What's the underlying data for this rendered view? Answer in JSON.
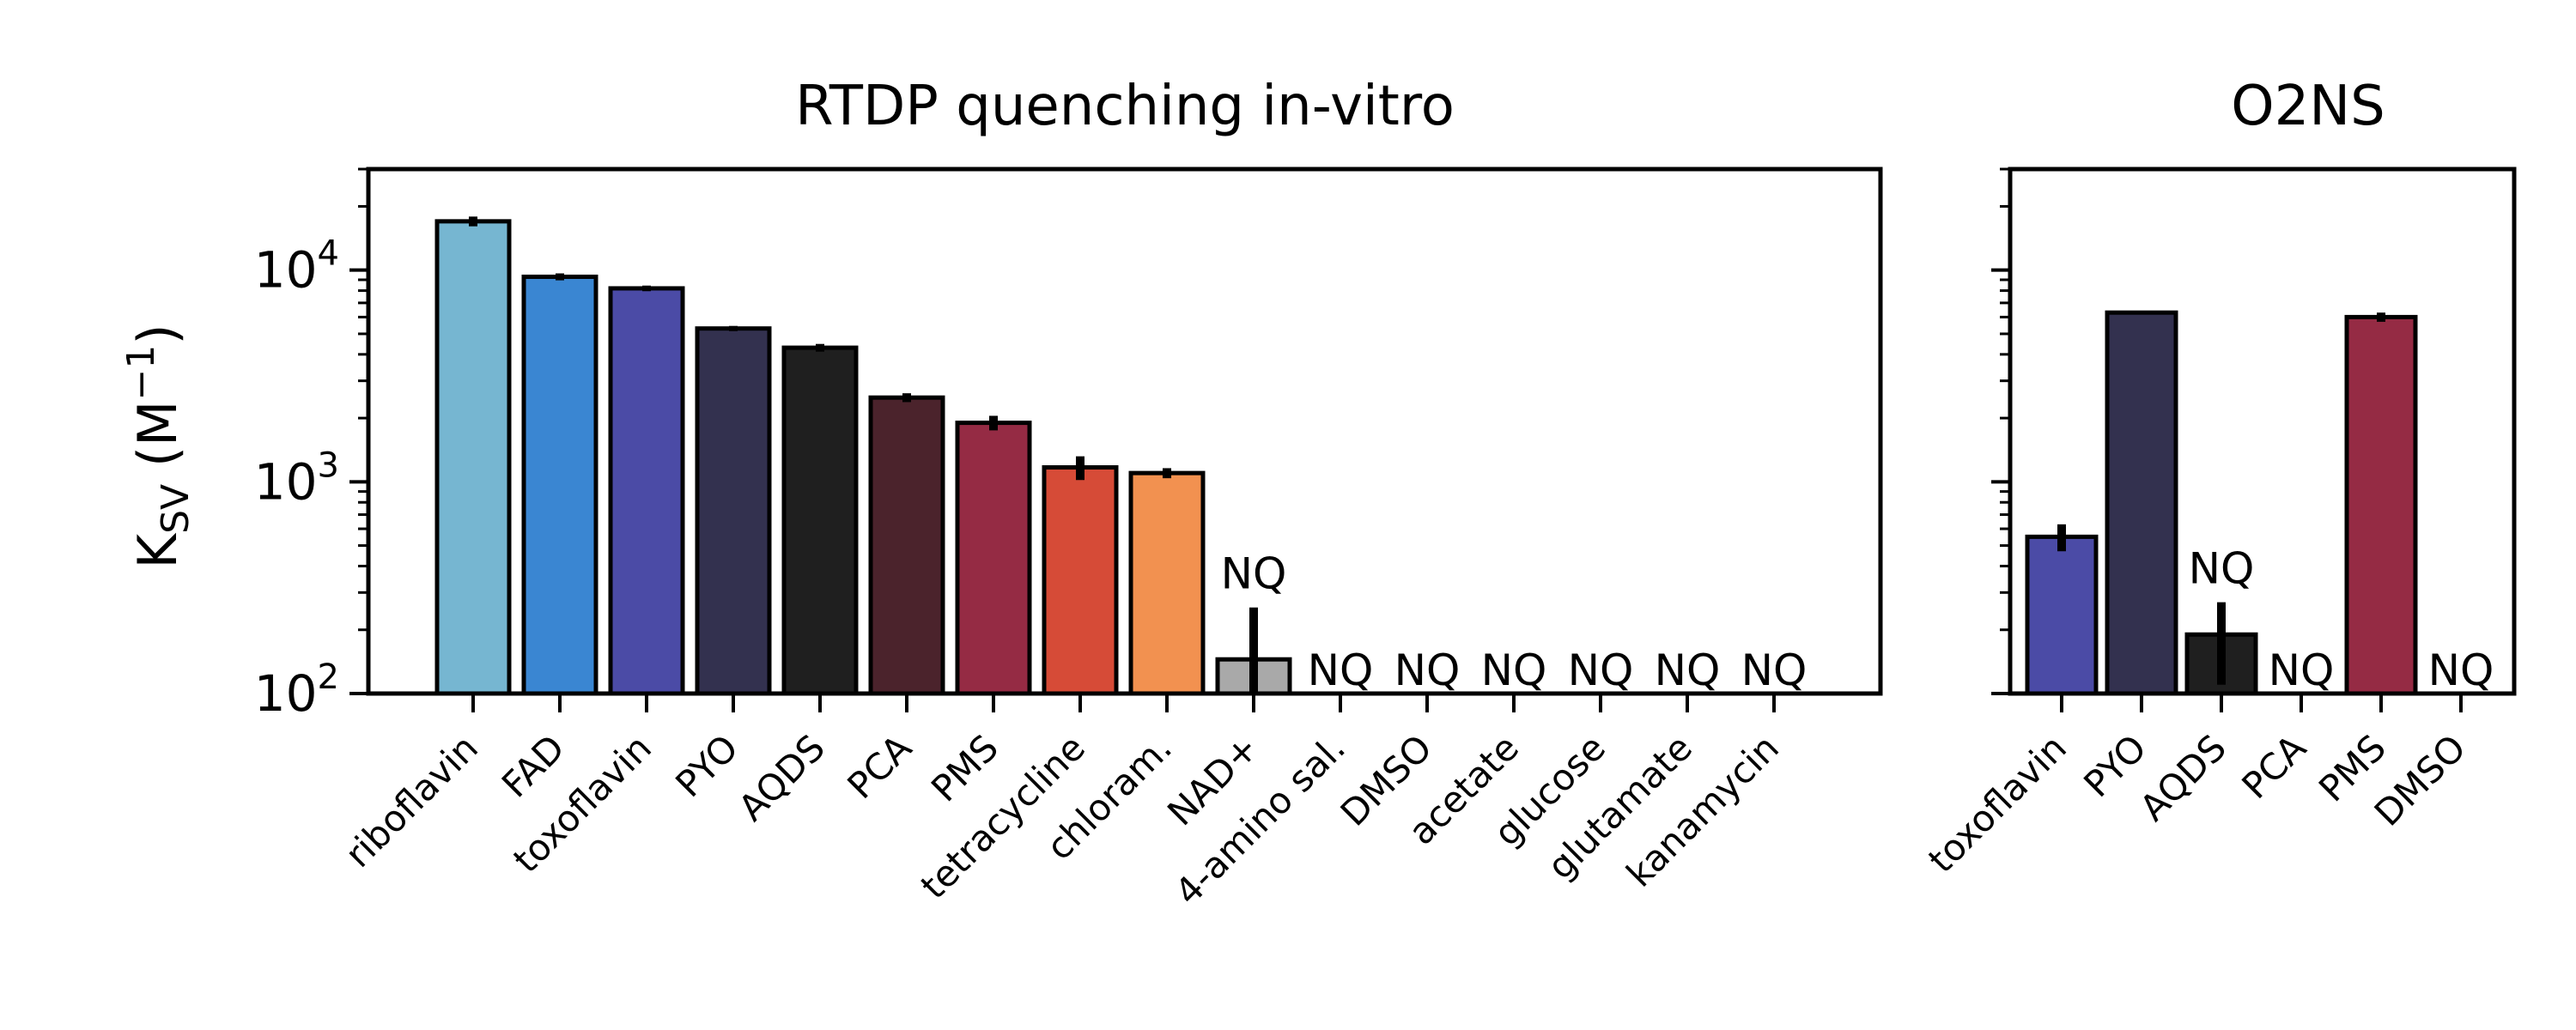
{
  "chart_data": [
    {
      "type": "bar",
      "title": "RTDP quenching in-vitro",
      "ylabel_main": "K",
      "ylabel_sub": "SV",
      "ylabel_unit": " (M",
      "ylabel_exp": "−1",
      "ylabel_close": ")",
      "yscale": "log",
      "ylim": [
        100,
        30000
      ],
      "yticks": [
        {
          "value": 100,
          "base": "10",
          "exp": "2"
        },
        {
          "value": 1000,
          "base": "10",
          "exp": "3"
        },
        {
          "value": 10000,
          "base": "10",
          "exp": "4"
        }
      ],
      "bars": [
        {
          "label": "riboflavin",
          "value": 17000,
          "err": 900,
          "color": "#76b6d1",
          "nq": ""
        },
        {
          "label": "FAD",
          "value": 9300,
          "err": 350,
          "color": "#3a86d2",
          "nq": ""
        },
        {
          "label": "toxoflavin",
          "value": 8200,
          "err": 250,
          "color": "#4b4ba6",
          "nq": ""
        },
        {
          "label": "PYO",
          "value": 5300,
          "err": 150,
          "color": "#33314f",
          "nq": ""
        },
        {
          "label": "AQDS",
          "value": 4300,
          "err": 180,
          "color": "#1f1f1f",
          "nq": ""
        },
        {
          "label": "PCA",
          "value": 2500,
          "err": 120,
          "color": "#4b232c",
          "nq": ""
        },
        {
          "label": "PMS",
          "value": 1900,
          "err": 150,
          "color": "#952b44",
          "nq": ""
        },
        {
          "label": "tetracycline",
          "value": 1170,
          "err": 150,
          "color": "#d64b37",
          "nq": ""
        },
        {
          "label": "chloram.",
          "value": 1100,
          "err": 60,
          "color": "#f29150",
          "nq": ""
        },
        {
          "label": "NAD+",
          "value": 145,
          "err": 110,
          "color": "#a9a9a9",
          "nq": "NQ"
        },
        {
          "label": "4-amino sal.",
          "value": null,
          "err": null,
          "color": "#a9a9a9",
          "nq": "NQ"
        },
        {
          "label": "DMSO",
          "value": null,
          "err": null,
          "color": "#a9a9a9",
          "nq": "NQ"
        },
        {
          "label": "acetate",
          "value": null,
          "err": null,
          "color": "#a9a9a9",
          "nq": "NQ"
        },
        {
          "label": "glucose",
          "value": null,
          "err": null,
          "color": "#a9a9a9",
          "nq": "NQ"
        },
        {
          "label": "glutamate",
          "value": null,
          "err": null,
          "color": "#a9a9a9",
          "nq": "NQ"
        },
        {
          "label": "kanamycin",
          "value": null,
          "err": null,
          "color": "#a9a9a9",
          "nq": "NQ"
        }
      ]
    },
    {
      "type": "bar",
      "title": "O2NS",
      "yscale": "log",
      "ylim": [
        100,
        30000
      ],
      "bars": [
        {
          "label": "toxoflavin",
          "value": 550,
          "err": 80,
          "color": "#4b4ba6",
          "nq": ""
        },
        {
          "label": "PYO",
          "value": 6300,
          "err": 80,
          "color": "#33314f",
          "nq": ""
        },
        {
          "label": "AQDS",
          "value": 190,
          "err": 80,
          "color": "#1f1f1f",
          "nq": "NQ"
        },
        {
          "label": "PCA",
          "value": null,
          "err": null,
          "color": "#4b232c",
          "nq": "NQ"
        },
        {
          "label": "PMS",
          "value": 6000,
          "err": 300,
          "color": "#952b44",
          "nq": ""
        },
        {
          "label": "DMSO",
          "value": null,
          "err": null,
          "color": "#a9a9a9",
          "nq": "NQ"
        }
      ]
    }
  ]
}
